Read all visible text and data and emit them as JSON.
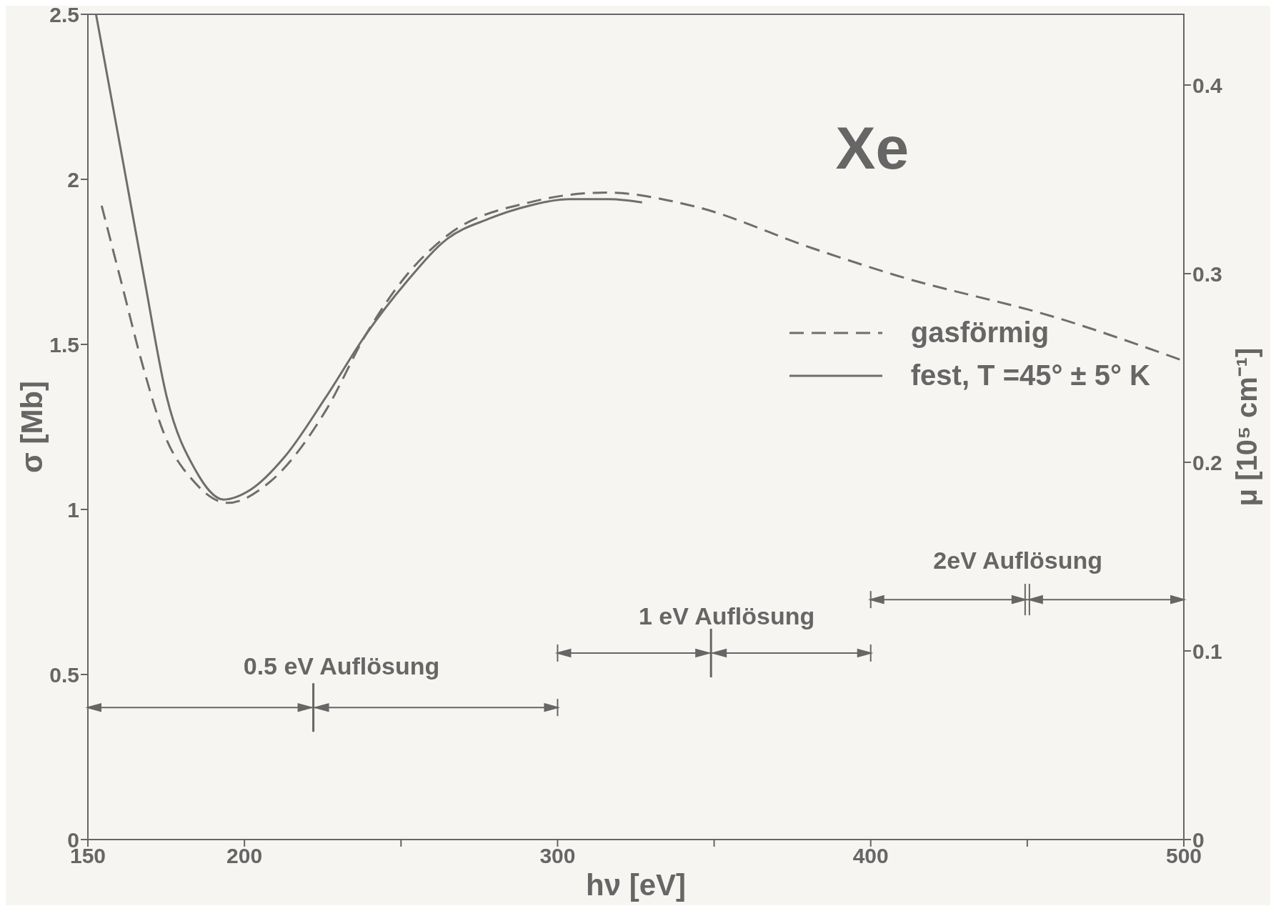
{
  "chart_data": {
    "type": "line",
    "title": "Xe",
    "xlabel": "hν [eV]",
    "ylabel": "σ [Mb]",
    "y2label": "μ [10⁵ cm⁻¹]",
    "xlim": [
      150,
      500
    ],
    "xticks": [
      150,
      200,
      {
        "value": 250,
        "label": null
      },
      300,
      {
        "value": 350,
        "label": null
      },
      400,
      {
        "value": 450,
        "label": null
      },
      500
    ],
    "ylim": [
      0,
      2.5
    ],
    "yticks": [
      0,
      0.5,
      1.0,
      1.5,
      2.0,
      2.5
    ],
    "y2lim": [
      0,
      0.4375
    ],
    "y2ticks": [
      0,
      0.1,
      0.2,
      0.3,
      0.4
    ],
    "legend": "right",
    "grid": false,
    "series": [
      {
        "name": "gasförmig",
        "color": "#6e6e6e",
        "line_style": "dashed",
        "x": [
          154.4,
          160.9,
          167.4,
          173.9,
          184.3,
          194.7,
          207.7,
          226,
          238.8,
          251.8,
          264.8,
          290.9,
          315.6,
          342.9,
          381.8,
          407.8,
          459.7,
          500
        ],
        "values": [
          1.92,
          1.68,
          1.44,
          1.24,
          1.08,
          1.02,
          1.08,
          1.3,
          1.53,
          1.71,
          1.83,
          1.93,
          1.96,
          1.92,
          1.79,
          1.71,
          1.58,
          1.45
        ]
      },
      {
        "name": "fest, T =45° ± 5° K",
        "color": "#6e6e6e",
        "line_style": "solid",
        "x": [
          152.6,
          160.9,
          168,
          175.2,
          184.3,
          193.4,
          202,
          212.9,
          226,
          238.8,
          251.8,
          264.8,
          277.9,
          290.9,
          303.9,
          316.7,
          327
        ],
        "values": [
          2.5,
          2.07,
          1.7,
          1.34,
          1.12,
          1.03,
          1.06,
          1.16,
          1.34,
          1.53,
          1.69,
          1.82,
          1.88,
          1.92,
          1.94,
          1.94,
          1.93
        ]
      }
    ],
    "annotations": [
      "0.5 eV Auflösung",
      "1 eV Auflösung",
      "2eV Auflösung"
    ]
  }
}
